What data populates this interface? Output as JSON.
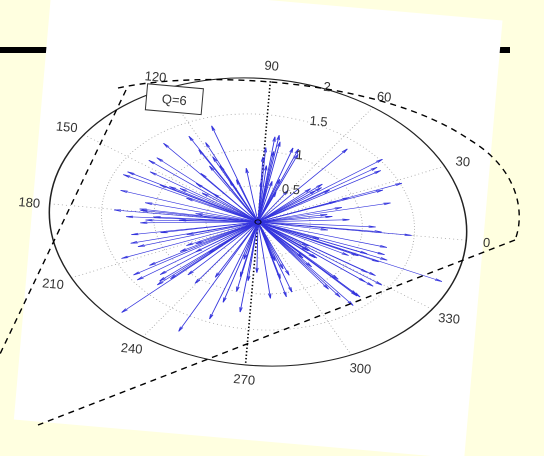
{
  "page": {
    "background": "#FFFFE0",
    "rule_color": "#000000"
  },
  "chart_data": {
    "type": "polar-compass",
    "annotation": "Q=6",
    "angle_ticks": [
      "0",
      "30",
      "60",
      "90",
      "120",
      "150",
      "180",
      "210",
      "240",
      "270",
      "300",
      "330"
    ],
    "radius_ticks": [
      "0.5",
      "1",
      "1.5",
      "2"
    ],
    "rlim": [
      0,
      2
    ],
    "line_color": "#3333DD",
    "grid": "dotted",
    "rays": {
      "count": 140,
      "note": "compass rays of random magnitude, mostly under 1.8, concentrated to the left and right"
    }
  }
}
